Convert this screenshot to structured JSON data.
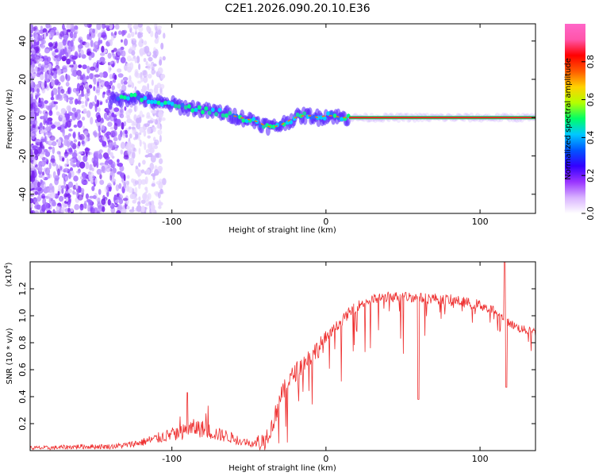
{
  "figure_title": "C2E1.2026.090.20.10.E36",
  "chart_data": [
    {
      "type": "heatmap",
      "panel": "top",
      "xlabel": "Height of straight line (km)",
      "ylabel": "Frequency (Hz)",
      "xlim": [
        -192,
        136
      ],
      "ylim": [
        -50,
        49
      ],
      "x_ticks": [
        -100,
        0,
        100
      ],
      "x_tick_labels": [
        "-100",
        "0",
        "100"
      ],
      "y_ticks": [
        -40,
        -20,
        0,
        20,
        40
      ],
      "y_tick_labels": [
        "-40",
        "-20",
        "0",
        "20",
        "40"
      ],
      "colorbar": {
        "label": "Normalized spectral amplitude",
        "range": [
          0,
          1
        ],
        "ticks": [
          0.0,
          0.2,
          0.4,
          0.6,
          0.8
        ],
        "tick_labels": [
          "0.0",
          "0.2",
          "0.4",
          "0.6",
          "0.8"
        ],
        "colors": [
          "#ffffff",
          "#d9b3ff",
          "#9933ff",
          "#3300ff",
          "#0055ff",
          "#00c8ff",
          "#00ff66",
          "#b4ff00",
          "#ffd200",
          "#ff5a00",
          "#ff0000",
          "#ff55aa",
          "#ff66c8"
        ]
      },
      "trace_frequency": {
        "x": [
          -140,
          -130,
          -125,
          -120,
          -115,
          -110,
          -105,
          -100,
          -95,
          -90,
          -85,
          -80,
          -75,
          -70,
          -65,
          -60,
          -55,
          -50,
          -45,
          -40,
          -35,
          -30,
          -25,
          -20,
          -15,
          -10,
          -5,
          0,
          5,
          10,
          15,
          20,
          40,
          60,
          80,
          100,
          110,
          115,
          120,
          136
        ],
        "y": [
          9,
          10,
          11,
          10,
          9,
          8,
          7,
          7,
          6,
          5,
          5,
          4,
          3,
          3,
          2,
          1,
          0,
          -1,
          -2,
          -4,
          -5,
          -4,
          -2,
          0,
          1,
          1,
          0,
          1,
          1,
          0,
          0,
          0,
          0,
          0,
          0,
          0,
          0,
          0,
          0,
          0
        ]
      },
      "noise_extent_km": [
        -192,
        -105
      ],
      "trace_start_km": -140
    },
    {
      "type": "line",
      "panel": "bottom",
      "xlabel": "Height of straight line (km)",
      "ylabel": "SNR (10 * v/v)",
      "y_scale_label": "(x10",
      "y_scale_exponent": "4",
      "xlim": [
        -192,
        136
      ],
      "ylim": [
        0,
        1.4
      ],
      "x_ticks": [
        -100,
        0,
        100
      ],
      "x_tick_labels": [
        "-100",
        "0",
        "100"
      ],
      "y_ticks": [
        0.2,
        0.4,
        0.6,
        0.8,
        1.0,
        1.2
      ],
      "y_tick_labels": [
        "0.2",
        "0.4",
        "0.6",
        "0.8",
        "1.0",
        "1.2"
      ],
      "series": [
        {
          "name": "SNR",
          "color": "#ee3030",
          "x": [
            -192,
            -180,
            -160,
            -140,
            -130,
            -120,
            -110,
            -100,
            -95,
            -90,
            -85,
            -80,
            -75,
            -70,
            -65,
            -60,
            -55,
            -50,
            -45,
            -40,
            -35,
            -30,
            -25,
            -20,
            -15,
            -10,
            -5,
            0,
            5,
            10,
            15,
            20,
            25,
            30,
            35,
            40,
            45,
            50,
            55,
            60,
            65,
            70,
            75,
            80,
            85,
            90,
            95,
            100,
            105,
            110,
            115,
            120,
            125,
            130,
            136
          ],
          "y": [
            0.02,
            0.02,
            0.03,
            0.03,
            0.04,
            0.06,
            0.09,
            0.12,
            0.13,
            0.15,
            0.17,
            0.16,
            0.14,
            0.12,
            0.11,
            0.09,
            0.07,
            0.06,
            0.05,
            0.08,
            0.18,
            0.38,
            0.5,
            0.58,
            0.64,
            0.7,
            0.76,
            0.82,
            0.9,
            0.96,
            1.02,
            1.07,
            1.1,
            1.12,
            1.13,
            1.14,
            1.14,
            1.14,
            1.14,
            1.13,
            1.13,
            1.13,
            1.12,
            1.12,
            1.11,
            1.1,
            1.09,
            1.08,
            1.06,
            1.03,
            0.98,
            0.94,
            0.91,
            0.89,
            0.88
          ]
        }
      ],
      "dips": [
        {
          "x": 60,
          "y": 0.38
        },
        {
          "x": 117,
          "y": 0.47
        }
      ],
      "spikes": [
        {
          "x": -90,
          "y": 0.43
        },
        {
          "x": 116,
          "y": 1.4
        }
      ]
    }
  ]
}
